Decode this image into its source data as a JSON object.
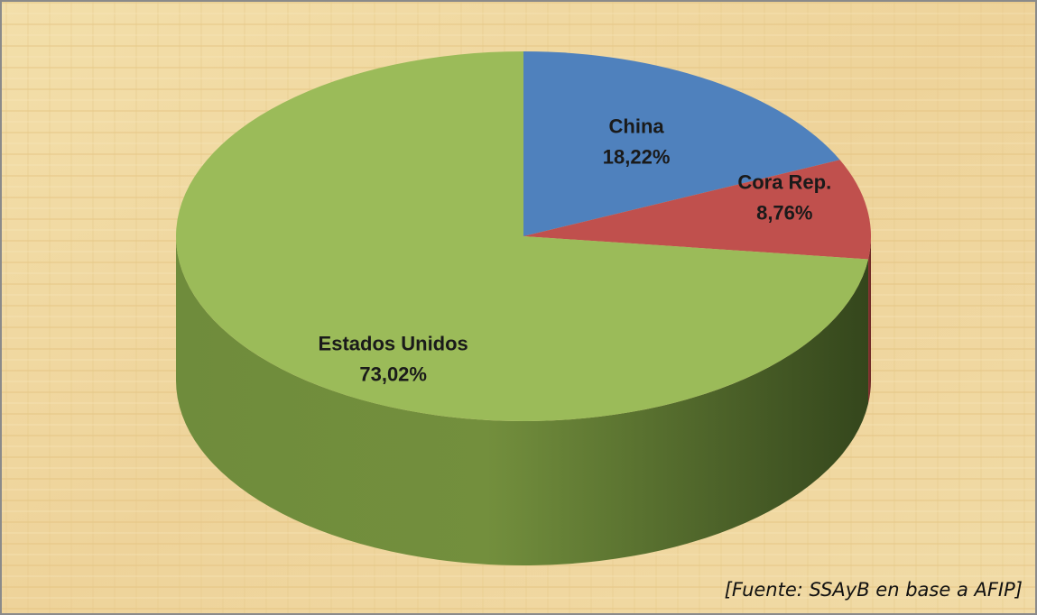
{
  "chart_data": {
    "type": "pie",
    "categories": [
      "China",
      "Cora Rep.",
      "Estados Unidos"
    ],
    "values": [
      18.22,
      8.76,
      73.02
    ],
    "value_labels": [
      "18,22%",
      "8,76%",
      "73,02%"
    ],
    "colors": [
      "#4f81bd",
      "#c0504d",
      "#9bbb59"
    ],
    "annotation": "[Fuente: SSAyB en base a AFIP]"
  }
}
